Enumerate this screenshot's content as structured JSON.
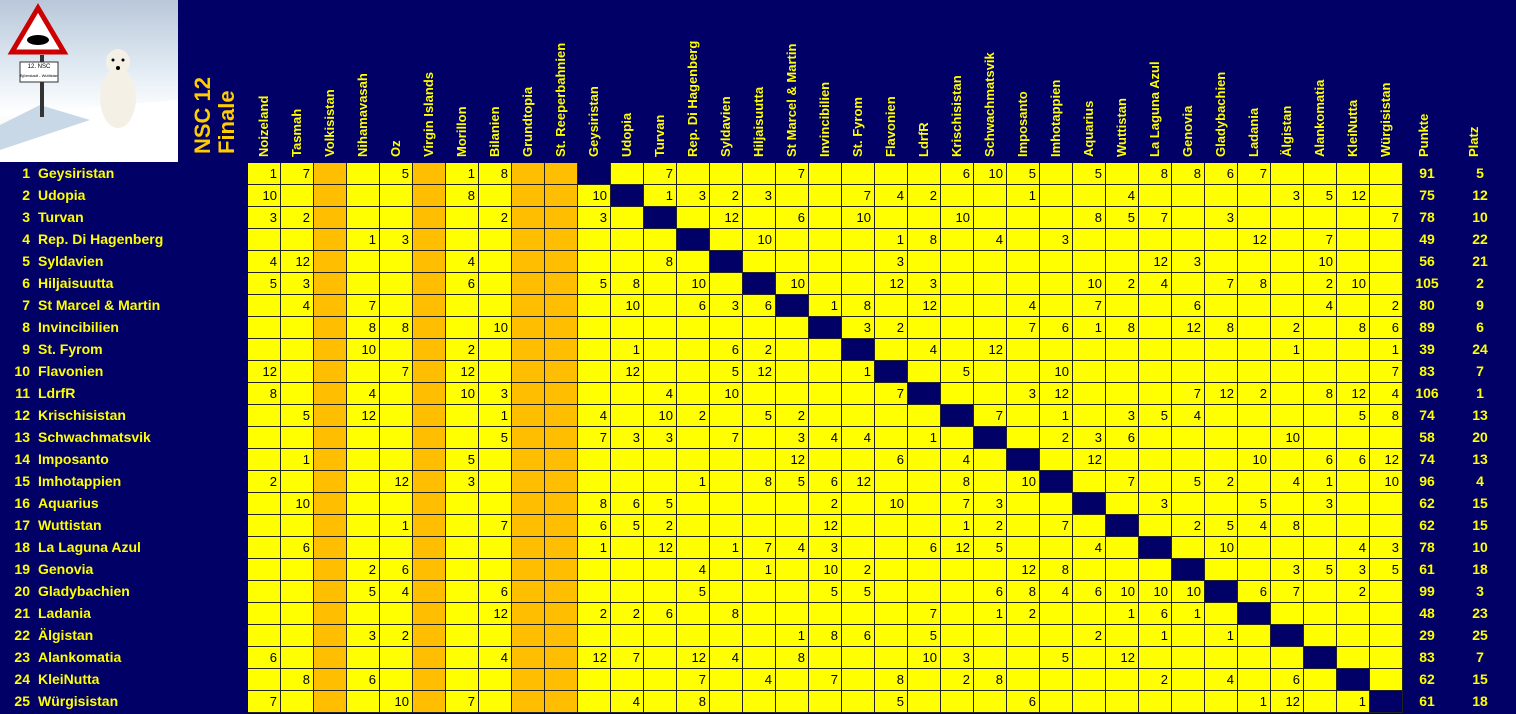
{
  "title": {
    "line1": "NSC 12",
    "line2": "Finale"
  },
  "logo": {
    "sign_line1": "12. NSC",
    "sign_line2": "Björnstadt - Wuttistan",
    "icon": "polar-bear-warning-sign"
  },
  "colors": {
    "background": "#000066",
    "cell": "#ffff00",
    "excluded_column": "#ffbf00",
    "text_yellow": "#ffff00",
    "diagonal": "#000066"
  },
  "columns": [
    "Noizeland",
    "Tasmah",
    "Volkisistan",
    "Nihamavasah",
    "Oz",
    "Virgin Islands",
    "Morillon",
    "Bilanien",
    "Grundtopia",
    "St. Reeperbahnien",
    "Geysiristan",
    "Udopia",
    "Turvan",
    "Rep. Di Hagenberg",
    "Syldavien",
    "Hiljaisuutta",
    "St Marcel & Martin",
    "Invincibilien",
    "St. Fyrom",
    "Flavonien",
    "LdrfR",
    "Krischisistan",
    "Schwachmatsvik",
    "Imposanto",
    "Imhotappien",
    "Aquarius",
    "Wuttistan",
    "La Laguna Azul",
    "Genovia",
    "Gladybachien",
    "Ladania",
    "Älgistan",
    "Alankomatia",
    "KleiNutta",
    "Würgisistan"
  ],
  "excluded_columns": [
    2,
    5,
    8,
    9
  ],
  "totals_headers": {
    "points": "Punkte",
    "rank": "Platz"
  },
  "rows": [
    {
      "num": "1",
      "name": "Geysiristan",
      "diag": 10,
      "points": "91",
      "rank": "5",
      "scores": {
        "0": "1",
        "1": "7",
        "4": "5",
        "6": "1",
        "7": "8",
        "12": "7",
        "16": "7",
        "21": "6",
        "22": "10",
        "23": "5",
        "25": "5",
        "27": "8",
        "28": "8",
        "29": "6",
        "30": "7"
      }
    },
    {
      "num": "2",
      "name": "Udopia",
      "diag": 11,
      "points": "75",
      "rank": "12",
      "scores": {
        "0": "10",
        "6": "8",
        "10": "10",
        "12": "1",
        "13": "3",
        "14": "2",
        "15": "3",
        "18": "7",
        "19": "4",
        "20": "2",
        "23": "1",
        "26": "4",
        "31": "3",
        "32": "5",
        "33": "12"
      }
    },
    {
      "num": "3",
      "name": "Turvan",
      "diag": 12,
      "points": "78",
      "rank": "10",
      "scores": {
        "0": "3",
        "1": "2",
        "7": "2",
        "10": "3",
        "14": "12",
        "16": "6",
        "18": "10",
        "21": "10",
        "25": "8",
        "26": "5",
        "27": "7",
        "29": "3",
        "34": "7"
      }
    },
    {
      "num": "4",
      "name": "Rep. Di Hagenberg",
      "diag": 13,
      "points": "49",
      "rank": "22",
      "scores": {
        "3": "1",
        "4": "3",
        "15": "10",
        "19": "1",
        "20": "8",
        "22": "4",
        "24": "3",
        "30": "12",
        "32": "7"
      }
    },
    {
      "num": "5",
      "name": "Syldavien",
      "diag": 14,
      "points": "56",
      "rank": "21",
      "scores": {
        "0": "4",
        "1": "12",
        "6": "4",
        "12": "8",
        "19": "3",
        "27": "12",
        "28": "3",
        "32": "10"
      }
    },
    {
      "num": "6",
      "name": "Hiljaisuutta",
      "diag": 15,
      "points": "105",
      "rank": "2",
      "scores": {
        "0": "5",
        "1": "3",
        "6": "6",
        "10": "5",
        "11": "8",
        "13": "10",
        "16": "10",
        "19": "12",
        "20": "3",
        "25": "10",
        "26": "2",
        "27": "4",
        "29": "7",
        "30": "8",
        "32": "2",
        "33": "10"
      }
    },
    {
      "num": "7",
      "name": "St Marcel & Martin",
      "diag": 16,
      "points": "80",
      "rank": "9",
      "scores": {
        "1": "4",
        "3": "7",
        "11": "10",
        "13": "6",
        "14": "3",
        "15": "6",
        "17": "1",
        "18": "8",
        "20": "12",
        "23": "4",
        "25": "7",
        "28": "6",
        "32": "4",
        "34": "2"
      }
    },
    {
      "num": "8",
      "name": "Invincibilien",
      "diag": 17,
      "points": "89",
      "rank": "6",
      "scores": {
        "3": "8",
        "4": "8",
        "7": "10",
        "18": "3",
        "19": "2",
        "23": "7",
        "24": "6",
        "25": "1",
        "26": "8",
        "28": "12",
        "29": "8",
        "31": "2",
        "33": "8",
        "34": "6"
      }
    },
    {
      "num": "9",
      "name": "St. Fyrom",
      "diag": 18,
      "points": "39",
      "rank": "24",
      "scores": {
        "3": "10",
        "6": "2",
        "11": "1",
        "14": "6",
        "15": "2",
        "20": "4",
        "22": "12",
        "31": "1",
        "34": "1"
      }
    },
    {
      "num": "10",
      "name": "Flavonien",
      "diag": 19,
      "points": "83",
      "rank": "7",
      "scores": {
        "0": "12",
        "4": "7",
        "6": "12",
        "11": "12",
        "14": "5",
        "15": "12",
        "18": "1",
        "21": "5",
        "24": "10",
        "34": "7"
      }
    },
    {
      "num": "11",
      "name": "LdrfR",
      "diag": 20,
      "points": "106",
      "rank": "1",
      "scores": {
        "0": "8",
        "3": "4",
        "6": "10",
        "7": "3",
        "12": "4",
        "14": "10",
        "19": "7",
        "23": "3",
        "24": "12",
        "28": "7",
        "29": "12",
        "30": "2",
        "32": "8",
        "33": "12",
        "34": "4"
      }
    },
    {
      "num": "12",
      "name": "Krischisistan",
      "diag": 21,
      "points": "74",
      "rank": "13",
      "scores": {
        "1": "5",
        "3": "12",
        "7": "1",
        "10": "4",
        "12": "10",
        "13": "2",
        "15": "5",
        "16": "2",
        "22": "7",
        "24": "1",
        "26": "3",
        "27": "5",
        "28": "4",
        "33": "5",
        "34": "8"
      }
    },
    {
      "num": "13",
      "name": "Schwachmatsvik",
      "diag": 22,
      "points": "58",
      "rank": "20",
      "scores": {
        "7": "5",
        "10": "7",
        "11": "3",
        "12": "3",
        "14": "7",
        "16": "3",
        "17": "4",
        "18": "4",
        "20": "1",
        "24": "2",
        "25": "3",
        "26": "6",
        "31": "10"
      }
    },
    {
      "num": "14",
      "name": "Imposanto",
      "diag": 23,
      "points": "74",
      "rank": "13",
      "scores": {
        "1": "1",
        "6": "5",
        "16": "12",
        "19": "6",
        "21": "4",
        "25": "12",
        "30": "10",
        "32": "6",
        "33": "6",
        "34": "12"
      }
    },
    {
      "num": "15",
      "name": "Imhotappien",
      "diag": 24,
      "points": "96",
      "rank": "4",
      "scores": {
        "0": "2",
        "4": "12",
        "6": "3",
        "13": "1",
        "15": "8",
        "16": "5",
        "17": "6",
        "18": "12",
        "21": "8",
        "23": "10",
        "26": "7",
        "28": "5",
        "29": "2",
        "31": "4",
        "32": "1",
        "34": "10"
      }
    },
    {
      "num": "16",
      "name": "Aquarius",
      "diag": 25,
      "points": "62",
      "rank": "15",
      "scores": {
        "1": "10",
        "10": "8",
        "11": "6",
        "12": "5",
        "17": "2",
        "19": "10",
        "21": "7",
        "22": "3",
        "27": "3",
        "30": "5",
        "32": "3"
      }
    },
    {
      "num": "17",
      "name": "Wuttistan",
      "diag": 26,
      "points": "62",
      "rank": "15",
      "scores": {
        "4": "1",
        "7": "7",
        "10": "6",
        "11": "5",
        "12": "2",
        "17": "12",
        "21": "1",
        "22": "2",
        "24": "7",
        "28": "2",
        "29": "5",
        "30": "4",
        "31": "8"
      }
    },
    {
      "num": "18",
      "name": "La Laguna Azul",
      "diag": 27,
      "points": "78",
      "rank": "10",
      "scores": {
        "1": "6",
        "10": "1",
        "12": "12",
        "14": "1",
        "15": "7",
        "16": "4",
        "17": "3",
        "20": "6",
        "21": "12",
        "22": "5",
        "25": "4",
        "29": "10",
        "33": "4",
        "34": "3"
      }
    },
    {
      "num": "19",
      "name": "Genovia",
      "diag": 28,
      "points": "61",
      "rank": "18",
      "scores": {
        "3": "2",
        "4": "6",
        "13": "4",
        "15": "1",
        "17": "10",
        "18": "2",
        "23": "12",
        "24": "8",
        "31": "3",
        "32": "5",
        "33": "3",
        "34": "5"
      }
    },
    {
      "num": "20",
      "name": "Gladybachien",
      "diag": 29,
      "points": "99",
      "rank": "3",
      "scores": {
        "3": "5",
        "4": "4",
        "7": "6",
        "13": "5",
        "17": "5",
        "18": "5",
        "22": "6",
        "23": "8",
        "24": "4",
        "25": "6",
        "26": "10",
        "27": "10",
        "28": "10",
        "30": "6",
        "31": "7",
        "33": "2"
      }
    },
    {
      "num": "21",
      "name": "Ladania",
      "diag": 30,
      "points": "48",
      "rank": "23",
      "scores": {
        "7": "12",
        "10": "2",
        "11": "2",
        "12": "6",
        "14": "8",
        "20": "7",
        "22": "1",
        "23": "2",
        "26": "1",
        "27": "6",
        "28": "1"
      }
    },
    {
      "num": "22",
      "name": "Älgistan",
      "diag": 31,
      "points": "29",
      "rank": "25",
      "scores": {
        "3": "3",
        "4": "2",
        "16": "1",
        "17": "8",
        "18": "6",
        "20": "5",
        "25": "2",
        "27": "1",
        "29": "1"
      }
    },
    {
      "num": "23",
      "name": "Alankomatia",
      "diag": 32,
      "points": "83",
      "rank": "7",
      "scores": {
        "0": "6",
        "7": "4",
        "10": "12",
        "11": "7",
        "13": "12",
        "14": "4",
        "16": "8",
        "20": "10",
        "21": "3",
        "24": "5",
        "26": "12"
      }
    },
    {
      "num": "24",
      "name": "KleiNutta",
      "diag": 33,
      "points": "62",
      "rank": "15",
      "scores": {
        "1": "8",
        "3": "6",
        "13": "7",
        "15": "4",
        "17": "7",
        "19": "8",
        "21": "2",
        "22": "8",
        "27": "2",
        "29": "4",
        "31": "6"
      }
    },
    {
      "num": "25",
      "name": "Würgisistan",
      "diag": 34,
      "points": "61",
      "rank": "18",
      "scores": {
        "0": "7",
        "4": "10",
        "6": "7",
        "11": "4",
        "13": "8",
        "19": "5",
        "23": "6",
        "30": "1",
        "31": "12",
        "33": "1"
      }
    }
  ]
}
